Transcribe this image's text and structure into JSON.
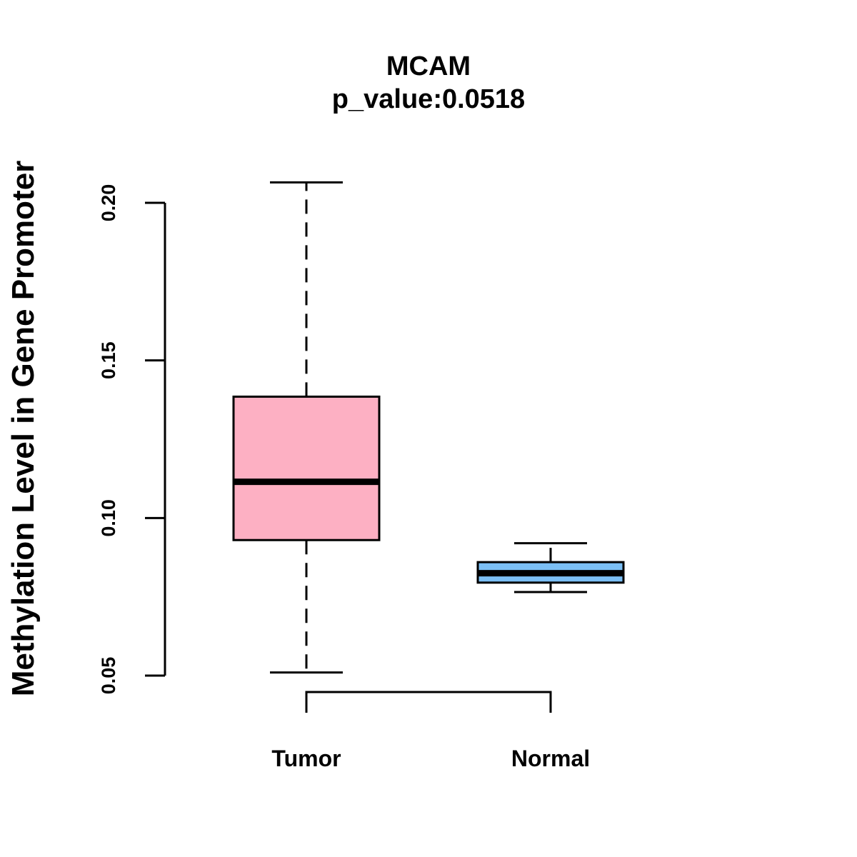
{
  "chart_data": {
    "type": "boxplot",
    "title": "MCAM",
    "subtitle": "p_value:0.0518",
    "xlabel": "",
    "ylabel": "Methylation Level in Gene Promoter",
    "ylim": [
      0.05,
      0.2
    ],
    "yticks": [
      0.05,
      0.1,
      0.15,
      0.2
    ],
    "ytick_labels": [
      "0.05",
      "0.10",
      "0.15",
      "0.20"
    ],
    "categories": [
      "Tumor",
      "Normal"
    ],
    "boxes": [
      {
        "name": "Tumor",
        "min": 0.051,
        "q1": 0.093,
        "median": 0.1115,
        "q3": 0.1385,
        "max": 0.2065,
        "color": "#FDB0C3"
      },
      {
        "name": "Normal",
        "min": 0.0765,
        "q1": 0.0795,
        "median": 0.0825,
        "q3": 0.086,
        "max": 0.092,
        "color": "#7BBFF5"
      }
    ],
    "comparison_bracket": {
      "from": "Tumor",
      "to": "Normal"
    },
    "grid": false
  }
}
